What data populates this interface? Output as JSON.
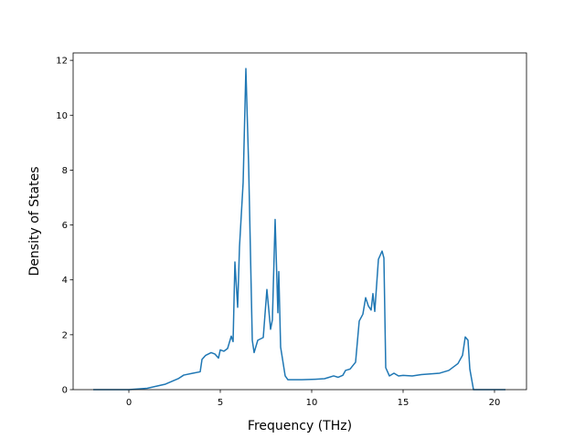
{
  "chart_data": {
    "type": "line",
    "x_label": "Frequency (THz)",
    "y_label": "Density of States",
    "color": "#1f77b4",
    "x": [
      -1.95,
      0,
      1,
      2,
      2.7,
      3.0,
      3.5,
      3.9,
      4.0,
      4.2,
      4.5,
      4.7,
      4.9,
      5.0,
      5.2,
      5.4,
      5.6,
      5.7,
      5.8,
      5.95,
      6.05,
      6.25,
      6.4,
      6.55,
      6.75,
      6.85,
      7.05,
      7.35,
      7.55,
      7.75,
      7.85,
      8.0,
      8.15,
      8.2,
      8.3,
      8.55,
      8.7,
      9.45,
      10.2,
      10.7,
      10.95,
      11.2,
      11.45,
      11.7,
      11.85,
      12.1,
      12.4,
      12.6,
      12.8,
      12.95,
      13.1,
      13.25,
      13.35,
      13.45,
      13.65,
      13.85,
      13.95,
      14.05,
      14.25,
      14.5,
      14.75,
      15.0,
      15.5,
      16.0,
      17.0,
      17.5,
      18.0,
      18.25,
      18.4,
      18.55,
      18.65,
      18.85,
      20.6
    ],
    "values": [
      0,
      0,
      0.05,
      0.2,
      0.4,
      0.53,
      0.6,
      0.65,
      1.1,
      1.25,
      1.35,
      1.3,
      1.15,
      1.45,
      1.4,
      1.5,
      1.95,
      1.75,
      4.65,
      3.0,
      5.2,
      7.55,
      11.7,
      8.2,
      1.8,
      1.35,
      1.8,
      1.9,
      3.65,
      2.2,
      2.55,
      6.2,
      2.8,
      4.3,
      1.55,
      0.5,
      0.36,
      0.36,
      0.38,
      0.4,
      0.45,
      0.5,
      0.45,
      0.52,
      0.7,
      0.75,
      1.0,
      2.5,
      2.75,
      3.35,
      3.05,
      2.9,
      3.5,
      2.85,
      4.75,
      5.05,
      4.8,
      0.8,
      0.5,
      0.6,
      0.5,
      0.52,
      0.5,
      0.55,
      0.6,
      0.7,
      0.95,
      1.25,
      1.92,
      1.8,
      0.75,
      0,
      0
    ],
    "xlim": [
      -3.05,
      21.75
    ],
    "xticks": [
      0,
      5,
      10,
      15,
      20
    ],
    "ylim": [
      0,
      12.27
    ],
    "yticks": [
      0,
      2,
      4,
      6,
      8,
      10,
      12
    ]
  }
}
